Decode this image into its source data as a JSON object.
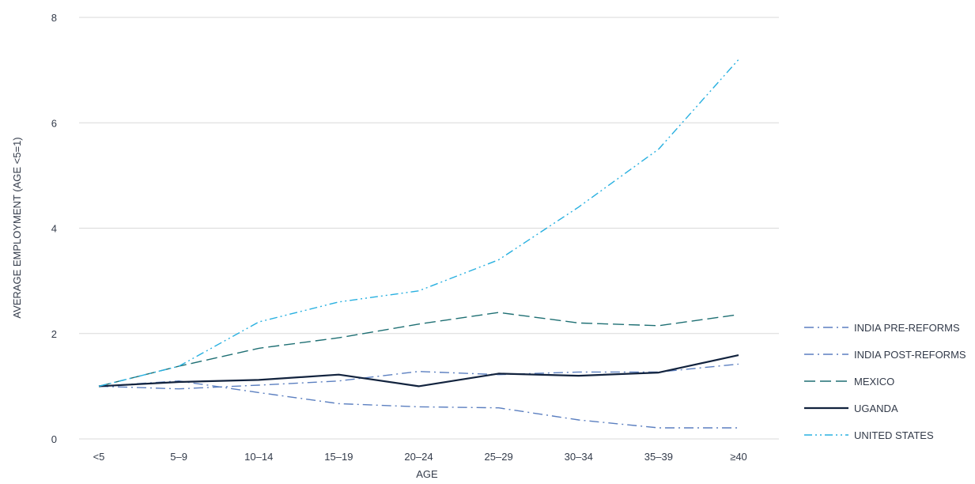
{
  "chart_data": {
    "type": "line",
    "title": "",
    "xlabel": "AGE",
    "ylabel": "AVERAGE EMPLOYMENT (AGE <5=1)",
    "categories": [
      "<5",
      "5–9",
      "10–14",
      "15–19",
      "20–24",
      "25–29",
      "30–34",
      "35–39",
      "≥40"
    ],
    "ylim": [
      0,
      8
    ],
    "yticks": [
      "0",
      "2",
      "4",
      "6",
      "8"
    ],
    "grid": true,
    "legend_position": "right",
    "series": [
      {
        "name": "INDIA PRE-REFORMS",
        "color": "#5b7fc0",
        "dash": "dash-dot",
        "values": [
          1.0,
          1.1,
          0.88,
          0.67,
          0.61,
          0.59,
          0.36,
          0.21,
          0.21
        ]
      },
      {
        "name": "INDIA POST-REFORMS",
        "color": "#5b7fc0",
        "dash": "dash-dot",
        "values": [
          1.0,
          0.95,
          1.02,
          1.1,
          1.28,
          1.22,
          1.27,
          1.27,
          1.42
        ]
      },
      {
        "name": "MEXICO",
        "color": "#1e6f73",
        "dash": "long-dash",
        "values": [
          1.0,
          1.38,
          1.72,
          1.92,
          2.18,
          2.4,
          2.2,
          2.15,
          2.36
        ]
      },
      {
        "name": "UGANDA",
        "color": "#12233e",
        "dash": "solid",
        "values": [
          1.0,
          1.08,
          1.12,
          1.22,
          1.0,
          1.24,
          1.2,
          1.26,
          1.59
        ]
      },
      {
        "name": "UNITED STATES",
        "color": "#28b0e0",
        "dash": "dash-dot-dot",
        "values": [
          1.0,
          1.38,
          2.22,
          2.6,
          2.81,
          3.4,
          4.4,
          5.5,
          7.2
        ]
      }
    ]
  }
}
